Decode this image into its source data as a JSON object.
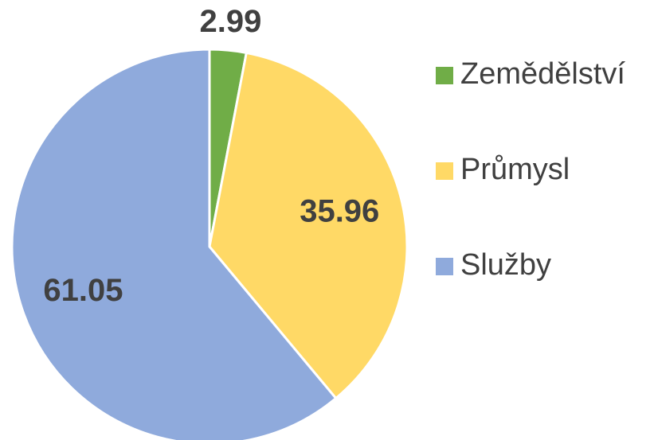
{
  "chart_data": {
    "type": "pie",
    "categories": [
      "Zemědělství",
      "Průmysl",
      "Služby"
    ],
    "values": [
      2.99,
      35.96,
      61.05
    ],
    "colors": [
      "#70ad47",
      "#ffd966",
      "#8faadc"
    ],
    "legend": "right"
  }
}
